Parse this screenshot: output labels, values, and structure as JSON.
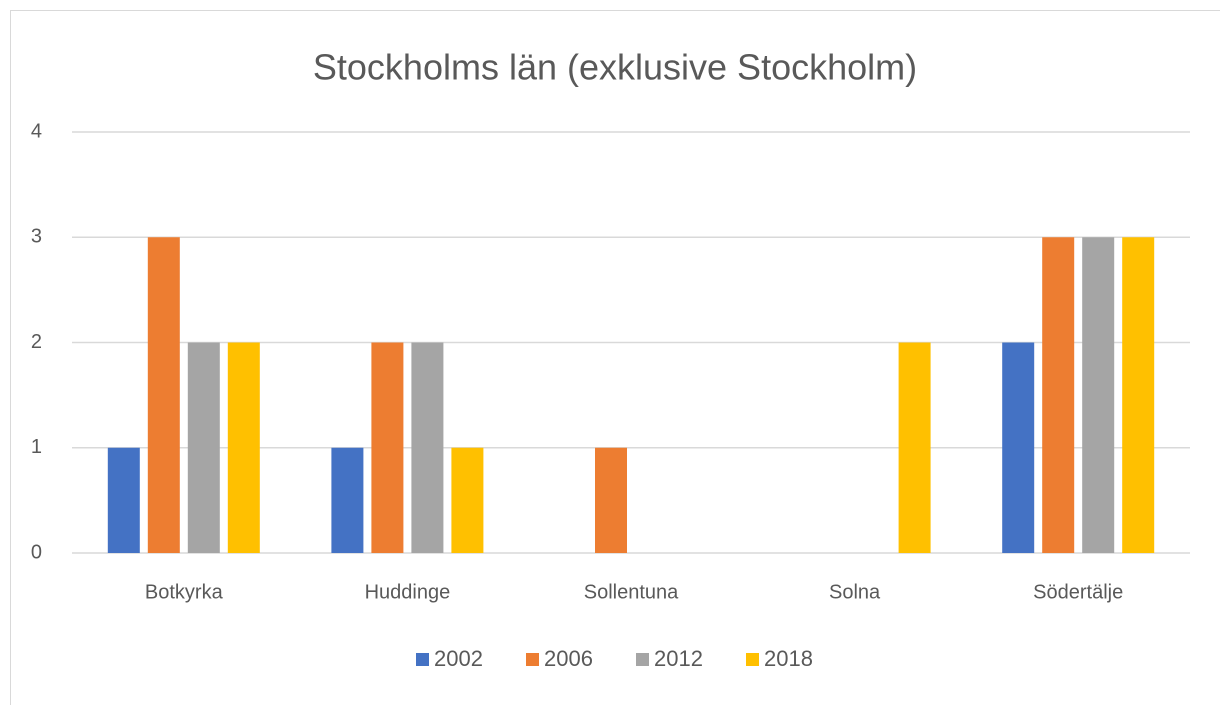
{
  "chart_data": {
    "type": "bar",
    "title": "Stockholms län (exklusive Stockholm)",
    "categories": [
      "Botkyrka",
      "Huddinge",
      "Sollentuna",
      "Solna",
      "Södertälje"
    ],
    "series": [
      {
        "name": "2002",
        "color": "#4472c4",
        "values": [
          1,
          1,
          0,
          0,
          2
        ]
      },
      {
        "name": "2006",
        "color": "#ed7d31",
        "values": [
          3,
          2,
          1,
          0,
          3
        ]
      },
      {
        "name": "2012",
        "color": "#a5a5a5",
        "values": [
          2,
          2,
          0,
          0,
          3
        ]
      },
      {
        "name": "2018",
        "color": "#ffc000",
        "values": [
          2,
          1,
          0,
          2,
          3
        ]
      }
    ],
    "ylim": [
      0,
      4
    ],
    "yticks": [
      0,
      1,
      2,
      3,
      4
    ],
    "grid": true,
    "legend": "bottom"
  }
}
